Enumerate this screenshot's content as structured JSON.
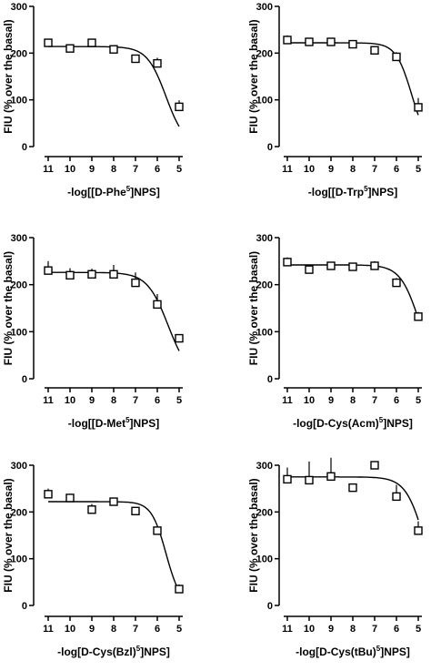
{
  "chart_data": [
    {
      "type": "scatter",
      "x_labels": [
        "11",
        "10",
        "9",
        "8",
        "7",
        "6",
        "5"
      ],
      "xlim": [
        11,
        5
      ],
      "ylim": [
        0,
        300
      ],
      "yticks": [
        "0",
        "100",
        "200",
        "300"
      ],
      "ylabel": "FIU (% over the basal)",
      "xlabel_parts": [
        "-log[[D-Phe",
        "5",
        "]NPS]"
      ],
      "points": [
        {
          "x": 11,
          "y": 222,
          "err": 5
        },
        {
          "x": 10,
          "y": 210,
          "err": 5
        },
        {
          "x": 9,
          "y": 222,
          "err": 6
        },
        {
          "x": 8,
          "y": 208,
          "err": 5
        },
        {
          "x": 7,
          "y": 188,
          "err": 4
        },
        {
          "x": 6,
          "y": 178,
          "err": 12
        },
        {
          "x": 5,
          "y": 85,
          "err": 14
        }
      ],
      "fit": {
        "top": 214,
        "bottom": 0,
        "log_ec50": 5.6,
        "hill": 1.0
      }
    },
    {
      "type": "scatter",
      "x_labels": [
        "11",
        "10",
        "9",
        "8",
        "7",
        "6",
        "5"
      ],
      "xlim": [
        11,
        5
      ],
      "ylim": [
        0,
        300
      ],
      "yticks": [
        "0",
        "100",
        "200",
        "300"
      ],
      "ylabel": "FIU (% over the basal)",
      "xlabel_parts": [
        "-log[[D-Trp",
        "5",
        "]NPS]"
      ],
      "points": [
        {
          "x": 11,
          "y": 228,
          "err": 10
        },
        {
          "x": 10,
          "y": 224,
          "err": 6
        },
        {
          "x": 9,
          "y": 224,
          "err": 6
        },
        {
          "x": 8,
          "y": 219,
          "err": 5
        },
        {
          "x": 7,
          "y": 206,
          "err": 5
        },
        {
          "x": 6,
          "y": 192,
          "err": 10
        },
        {
          "x": 5,
          "y": 84,
          "err": 20
        }
      ],
      "fit": {
        "top": 222,
        "bottom": 0,
        "log_ec50": 5.3,
        "hill": 1.2
      }
    },
    {
      "type": "scatter",
      "x_labels": [
        "11",
        "10",
        "9",
        "8",
        "7",
        "6",
        "5"
      ],
      "xlim": [
        11,
        5
      ],
      "ylim": [
        0,
        300
      ],
      "yticks": [
        "0",
        "100",
        "200",
        "300"
      ],
      "ylabel": "FIU (% over the basal)",
      "xlabel_parts": [
        "-log[[D-Met",
        "5",
        "]NPS]"
      ],
      "points": [
        {
          "x": 11,
          "y": 230,
          "err": 20
        },
        {
          "x": 10,
          "y": 220,
          "err": 15
        },
        {
          "x": 9,
          "y": 222,
          "err": 12
        },
        {
          "x": 8,
          "y": 222,
          "err": 20
        },
        {
          "x": 7,
          "y": 204,
          "err": 22
        },
        {
          "x": 6,
          "y": 158,
          "err": 22
        },
        {
          "x": 5,
          "y": 86,
          "err": 5
        }
      ],
      "fit": {
        "top": 226,
        "bottom": 0,
        "log_ec50": 5.5,
        "hill": 0.9
      }
    },
    {
      "type": "scatter",
      "x_labels": [
        "11",
        "10",
        "9",
        "8",
        "7",
        "6",
        "5"
      ],
      "xlim": [
        11,
        5
      ],
      "ylim": [
        0,
        300
      ],
      "yticks": [
        "0",
        "100",
        "200",
        "300"
      ],
      "ylabel": "FIU (% over the basal)",
      "xlabel_parts": [
        "-log[D-Cys(Acm)",
        "5",
        "]NPS]"
      ],
      "points": [
        {
          "x": 11,
          "y": 248,
          "err": 10
        },
        {
          "x": 10,
          "y": 232,
          "err": 5
        },
        {
          "x": 9,
          "y": 240,
          "err": 5
        },
        {
          "x": 8,
          "y": 238,
          "err": 5
        },
        {
          "x": 7,
          "y": 240,
          "err": 10
        },
        {
          "x": 6,
          "y": 204,
          "err": 10
        },
        {
          "x": 5,
          "y": 132,
          "err": 10
        }
      ],
      "fit": {
        "top": 242,
        "bottom": 0,
        "log_ec50": 4.95,
        "hill": 1.0
      }
    },
    {
      "type": "scatter",
      "x_labels": [
        "11",
        "10",
        "9",
        "8",
        "7",
        "6",
        "5"
      ],
      "xlim": [
        11,
        5
      ],
      "ylim": [
        0,
        300
      ],
      "yticks": [
        "0",
        "100",
        "200",
        "300"
      ],
      "ylabel": "FIU (% over the basal)",
      "xlabel_parts": [
        "-log[D-Cys(Bzl)",
        "5",
        "]NPS]"
      ],
      "points": [
        {
          "x": 11,
          "y": 238,
          "err": 12
        },
        {
          "x": 10,
          "y": 230,
          "err": 8
        },
        {
          "x": 9,
          "y": 205,
          "err": 12
        },
        {
          "x": 8,
          "y": 222,
          "err": 8
        },
        {
          "x": 7,
          "y": 202,
          "err": 8
        },
        {
          "x": 6,
          "y": 160,
          "err": 8
        },
        {
          "x": 5,
          "y": 35,
          "err": 10
        }
      ],
      "fit": {
        "top": 222,
        "bottom": 0,
        "log_ec50": 5.6,
        "hill": 1.3
      }
    },
    {
      "type": "scatter",
      "x_labels": [
        "11",
        "10",
        "9",
        "8",
        "7",
        "6",
        "5"
      ],
      "xlim": [
        11,
        5
      ],
      "ylim": [
        0,
        300
      ],
      "yticks": [
        "0",
        "100",
        "200",
        "300"
      ],
      "ylabel": "FIU (% over the basal)",
      "xlabel_parts": [
        "-log[D-Cys(tBu)",
        "5",
        "]NPS]"
      ],
      "points": [
        {
          "x": 11,
          "y": 270,
          "err": 25
        },
        {
          "x": 10,
          "y": 268,
          "err": 40
        },
        {
          "x": 9,
          "y": 276,
          "err": 40
        },
        {
          "x": 8,
          "y": 252,
          "err": 5
        },
        {
          "x": 7,
          "y": 300,
          "err": 0
        },
        {
          "x": 6,
          "y": 233,
          "err": 25
        },
        {
          "x": 5,
          "y": 160,
          "err": 20
        }
      ],
      "fit": {
        "top": 275,
        "bottom": 0,
        "log_ec50": 4.7,
        "hill": 1.0
      }
    }
  ]
}
